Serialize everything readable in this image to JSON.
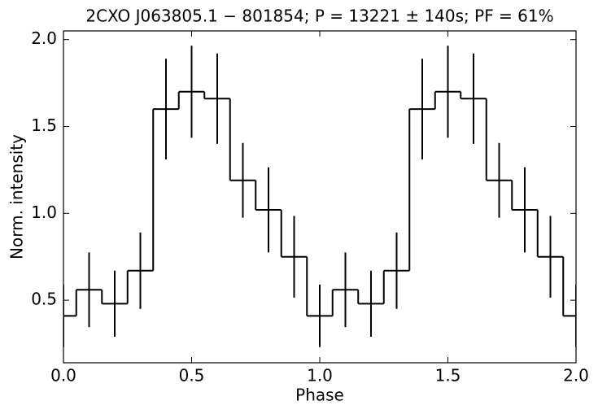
{
  "chart_data": {
    "type": "step-errorbar",
    "title": "2CXO J063805.1 − 801854;  P = 13221 ± 140s;  PF = 61%",
    "x_label": "Phase",
    "y_label": "Norm. intensity",
    "x": [
      0.0,
      0.1,
      0.2,
      0.3,
      0.4,
      0.5,
      0.6,
      0.7,
      0.8,
      0.9,
      1.0,
      1.1,
      1.2,
      1.3,
      1.4,
      1.5,
      1.6,
      1.7,
      1.8,
      1.9,
      2.0
    ],
    "bin_width": 0.1,
    "values": [
      0.41,
      0.56,
      0.48,
      0.67,
      1.6,
      1.7,
      1.66,
      1.19,
      1.02,
      0.75,
      0.41,
      0.56,
      0.48,
      0.67,
      1.6,
      1.7,
      1.66,
      1.19,
      1.02,
      0.75,
      0.41
    ],
    "errors": [
      0.18,
      0.215,
      0.19,
      0.22,
      0.29,
      0.265,
      0.26,
      0.215,
      0.245,
      0.235,
      0.18,
      0.215,
      0.19,
      0.22,
      0.29,
      0.265,
      0.26,
      0.215,
      0.245,
      0.235,
      0.18
    ],
    "color": "#000000",
    "xlim": [
      0.0,
      2.0
    ],
    "ylim": [
      0.14,
      2.05
    ],
    "xticks": [
      {
        "value": 0.0,
        "label": "0.0"
      },
      0.5,
      {
        "value": 1.0,
        "label": "1.0"
      },
      1.5,
      {
        "value": 2.0,
        "label": "2.0"
      }
    ],
    "yticks": [
      0.5,
      {
        "value": 1.0,
        "label": "1.0"
      },
      1.5,
      {
        "value": 2.0,
        "label": "2.0"
      }
    ],
    "grid": false
  }
}
